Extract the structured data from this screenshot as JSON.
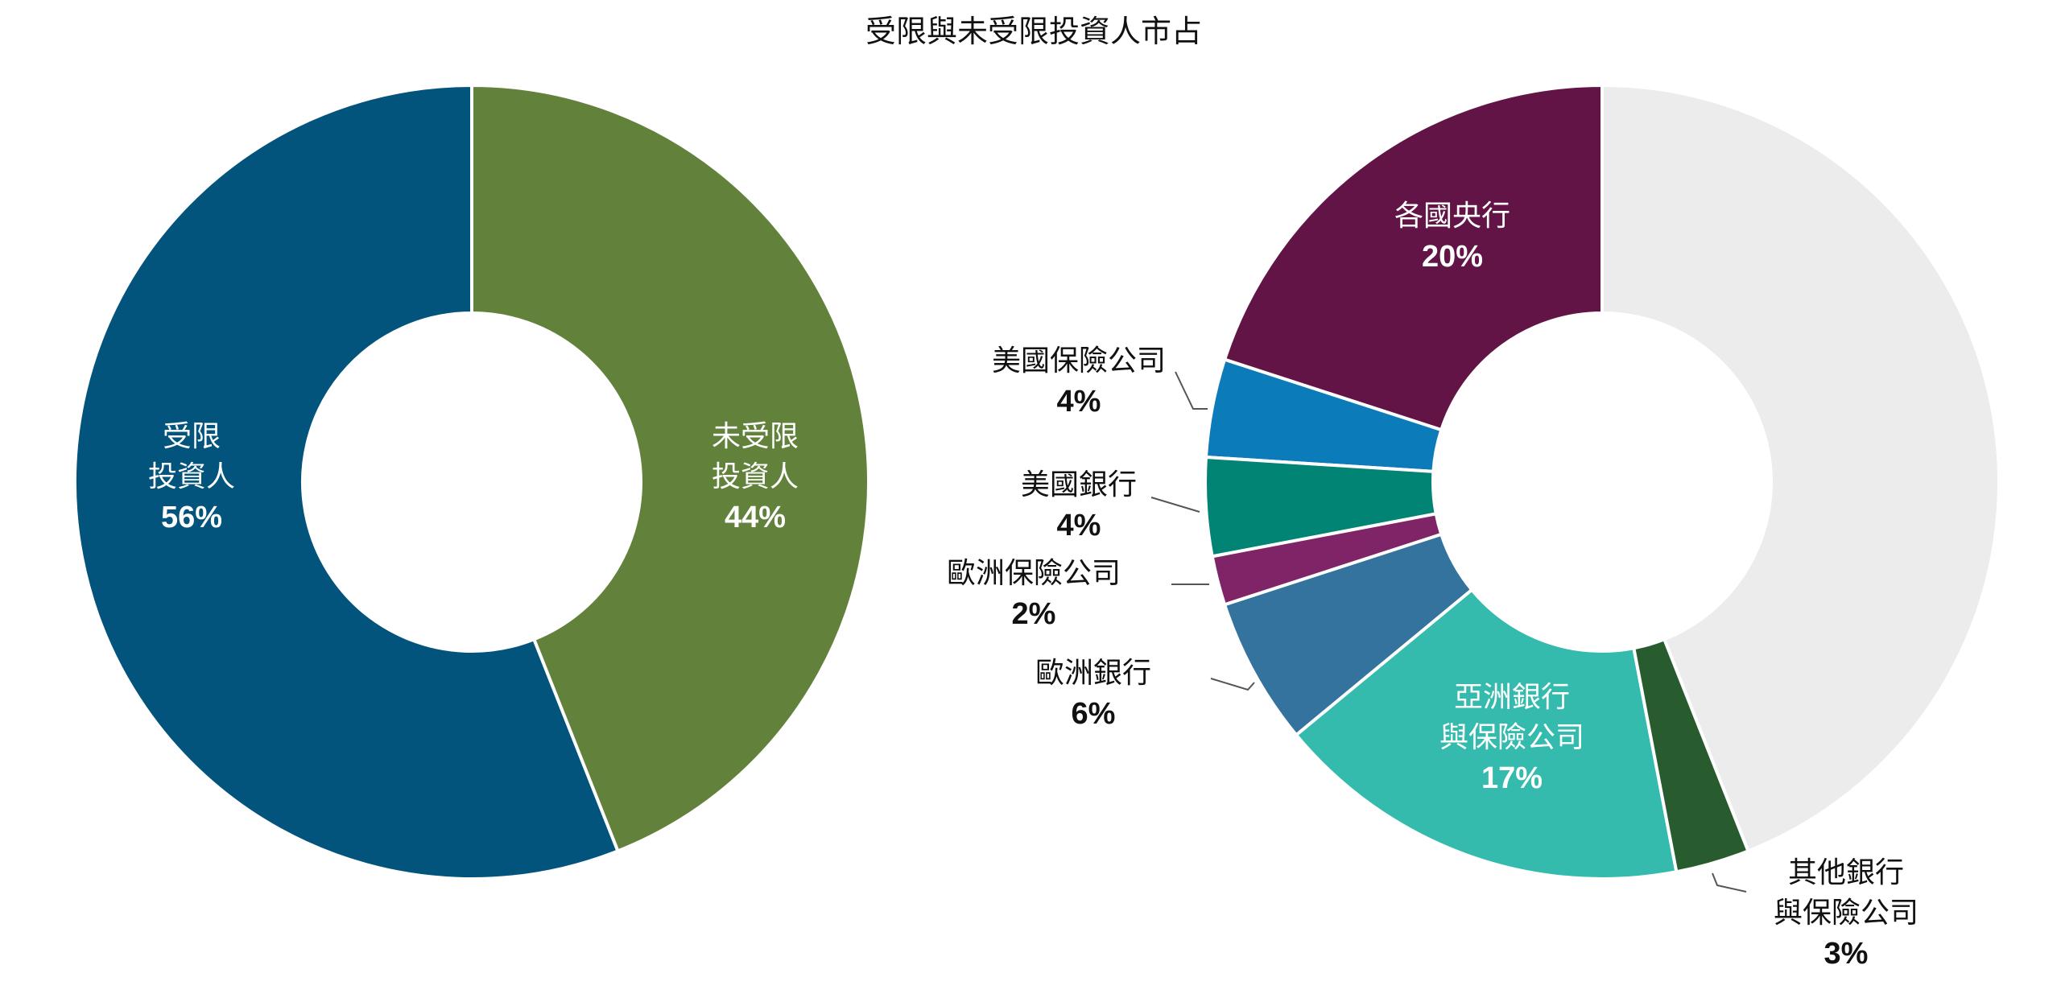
{
  "chart_data": [
    {
      "type": "pie",
      "variant": "donut",
      "title": "受限與未受限投資人市占",
      "slices": [
        {
          "label": [
            "受限",
            "投資人"
          ],
          "value": 56,
          "pct_label": "56%",
          "color": "#02547c"
        },
        {
          "label": [
            "未受限",
            "投資人"
          ],
          "value": 44,
          "pct_label": "44%",
          "color": "#62823c"
        }
      ]
    },
    {
      "type": "pie",
      "variant": "donut",
      "slices": [
        {
          "label": [
            "各國央行"
          ],
          "value": 20,
          "pct_label": "20%",
          "color": "#611445"
        },
        {
          "label": [
            "美國保險公司"
          ],
          "value": 4,
          "pct_label": "4%",
          "color": "#0b7bba"
        },
        {
          "label": [
            "美國銀行"
          ],
          "value": 4,
          "pct_label": "4%",
          "color": "#028474"
        },
        {
          "label": [
            "歐洲保險公司"
          ],
          "value": 2,
          "pct_label": "2%",
          "color": "#7e2467"
        },
        {
          "label": [
            "歐洲銀行"
          ],
          "value": 6,
          "pct_label": "6%",
          "color": "#34739e"
        },
        {
          "label": [
            "亞洲銀行",
            "與保險公司"
          ],
          "value": 17,
          "pct_label": "17%",
          "color": "#34bbad"
        },
        {
          "label": [
            "其他銀行",
            "與保險公司"
          ],
          "value": 3,
          "pct_label": "3%",
          "color": "#285c2f"
        },
        {
          "label": [],
          "value": 44,
          "pct_label": "",
          "color": "#ececec"
        }
      ]
    }
  ]
}
